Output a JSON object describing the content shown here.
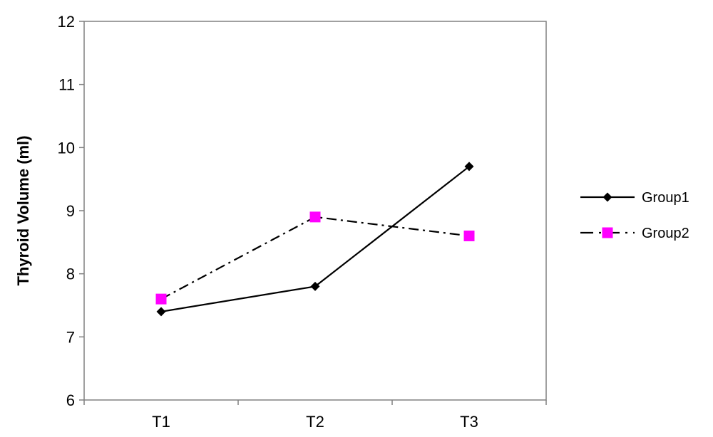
{
  "chart_data": {
    "type": "line",
    "categories": [
      "T1",
      "T2",
      "T3"
    ],
    "ylabel": "Thyroid Volume (ml)",
    "xlabel": "",
    "title": "",
    "ylim": [
      6,
      12
    ],
    "yticks": [
      "6",
      "7",
      "8",
      "9",
      "10",
      "11",
      "12"
    ],
    "grid": false,
    "legend_position": "right",
    "series": [
      {
        "name": "Group1",
        "values": [
          7.4,
          7.8,
          9.7
        ],
        "color": "#000000",
        "marker": "diamond",
        "line_style": "solid"
      },
      {
        "name": "Group2",
        "values": [
          7.6,
          8.9,
          8.6
        ],
        "color": "#ff00ff",
        "marker": "square",
        "line_style": "dash-dot"
      }
    ]
  }
}
